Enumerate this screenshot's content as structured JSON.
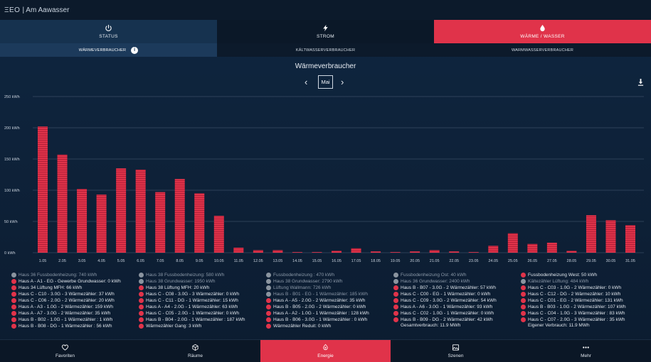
{
  "app": {
    "logo": "ΞEO",
    "home_title": "| Am Aawasser"
  },
  "main_tabs": [
    {
      "label": "STATUS",
      "icon": "power-icon"
    },
    {
      "label": "STROM",
      "icon": "lightning-icon"
    },
    {
      "label": "WÄRME / WASSER",
      "icon": "drop-icon"
    }
  ],
  "sub_tabs": [
    {
      "label": "WÄRMEVERBRAUCHER",
      "info": "i"
    },
    {
      "label": "KÄLTWASSERVERBRAUCHER"
    },
    {
      "label": "WARMWASSERVERBRAUCHER"
    }
  ],
  "chart_header": {
    "title": "Wärmeverbraucher",
    "period": "Mai"
  },
  "colors": {
    "accent": "#e0334a",
    "background": "#0e2035",
    "muted_dot": "#8a949f"
  },
  "chart_data": {
    "type": "bar",
    "title": "Wärmeverbraucher",
    "xlabel": "",
    "ylabel": "",
    "ylim": [
      0,
      250
    ],
    "yticks": [
      "0 kWh",
      "50 kWh",
      "100 kWh",
      "150 kWh",
      "200 kWh",
      "250 kWh"
    ],
    "grid": true,
    "categories": [
      "1.05",
      "2.05",
      "3.05",
      "4.05",
      "5.05",
      "6.05",
      "7.05",
      "8.05",
      "9.05",
      "10.05",
      "11.05",
      "12.05",
      "13.05",
      "14.05",
      "15.05",
      "16.05",
      "17.05",
      "18.05",
      "19.05",
      "20.05",
      "21.05",
      "22.05",
      "23.05",
      "24.05",
      "25.05",
      "26.05",
      "27.05",
      "28.05",
      "29.05",
      "30.05",
      "31.05"
    ],
    "values": [
      202,
      157,
      102,
      93,
      135,
      133,
      97,
      118,
      95,
      59,
      8,
      4,
      4,
      1,
      1,
      3,
      7,
      2,
      1,
      2,
      4,
      2,
      1,
      11,
      31,
      14,
      16,
      3,
      60,
      52,
      44
    ]
  },
  "legend": {
    "columns": [
      {
        "items": [
          {
            "label": "Haus 36 Fussbodenheizung: 740 kWh",
            "muted": true
          },
          {
            "label": "Haus A - A1 - EG - Gewerbe Grundwasser: 0 kWh",
            "muted": false
          },
          {
            "label": "Haus 34 Lüftung MFH: 66 kWh",
            "muted": false
          },
          {
            "label": "Haus C - C10 - 3.0G - 3 Wärmezähler: 37 kWh",
            "muted": false
          },
          {
            "label": "Haus C - C06 - 2.0G - 2 Wärmezähler: 20 kWh",
            "muted": false
          },
          {
            "label": "Haus A - A3 - 1.0G - 2 Wärmezähler: 159 kWh",
            "muted": false
          },
          {
            "label": "Haus A - A7 - 3.0G - 2 Wärmezähler: 35 kWh",
            "muted": false
          },
          {
            "label": "Haus B - B02 - 1.0G - 1 Wärmezähler : 1 kWh",
            "muted": false
          },
          {
            "label": "Haus B - B08 - DG - 1 Wärmezähler : 56 kWh",
            "muted": false
          }
        ]
      },
      {
        "items": [
          {
            "label": "Haus 38 Fussbodenheizung: 580 kWh",
            "muted": true
          },
          {
            "label": "Haus 38 Grundwasser: 1950 kWh",
            "muted": true
          },
          {
            "label": "Haus 38 Lüftung MFH: 20 kWh",
            "muted": false
          },
          {
            "label": "Haus C - C08 - 3.0G - 3 Wärmezähler: 0 kWh",
            "muted": false
          },
          {
            "label": "Haus C - C11 - DG - 1 Wärmezähler: 15 kWh",
            "muted": false
          },
          {
            "label": "Haus A - A4 - 2.0G - 1 Wärmezähler: 63 kWh",
            "muted": false
          },
          {
            "label": "Haus C - C05 - 2.0G - 1 Wärmezähler: 0 kWh",
            "muted": false
          },
          {
            "label": "Haus B - B04 - 2.0G - 1 Wärmezähler : 187 kWh",
            "muted": false
          },
          {
            "label": "Wärmezähler Gang: 3 kWh",
            "muted": false
          }
        ]
      },
      {
        "items": [
          {
            "label": "Fussbodenheizung : 470 kWh",
            "muted": true
          },
          {
            "label": "Haus 38 Grundwasser: 2790 kWh",
            "muted": true
          },
          {
            "label": "Lüftung Wallmann: 726 kWh",
            "muted": true
          },
          {
            "label": "Haus B - B01 - EG - 1 Wärmezähler: 185 kWh",
            "muted": true
          },
          {
            "label": "Haus A - A5 - 2.0G - 2 Wärmezähler: 35 kWh",
            "muted": false
          },
          {
            "label": "Haus B - B05 - 2.0G - 2 Wärmezähler: 0 kWh",
            "muted": false
          },
          {
            "label": "Haus A - A2 - 1.0G - 1 Wärmezähler : 128 kWh",
            "muted": false
          },
          {
            "label": "Haus B - B06 - 3.0G - 1 Wärmezähler : 0 kWh",
            "muted": false
          },
          {
            "label": "Wärmezähler Reduit: 0 kWh",
            "muted": false
          }
        ]
      },
      {
        "items": [
          {
            "label": "Fussbodenheizung Ost: 40 kWh",
            "muted": true
          },
          {
            "label": "Haus 36 Grundwasser: 2400 kWh",
            "muted": true
          },
          {
            "label": "Haus B - B07 - 3.0G - 2 Wärmezähler: 57 kWh",
            "muted": false
          },
          {
            "label": "Haus C - C00 - EG - 1 Wärmezähler: 0 kWh",
            "muted": false
          },
          {
            "label": "Haus C - C09 - 3.0G - 2 Wärmezähler: 54 kWh",
            "muted": false
          },
          {
            "label": "Haus A - A6 - 3.0G - 1 Wärmezähler: 93 kWh",
            "muted": false
          },
          {
            "label": "Haus C - C02 - 1.0G - 1 Wärmezähler: 0 kWh",
            "muted": false
          },
          {
            "label": "Haus B - B09 - DG - 2 Wärmezähler: 42 kWh",
            "muted": false
          }
        ],
        "total": "Gesamtverbrauch: 11.9 MWh"
      },
      {
        "items": [
          {
            "label": "Fussbodenheizung West: 50 kWh",
            "muted": false
          },
          {
            "label": "Kältezähler Lüftung: 484 kWh",
            "muted": true
          },
          {
            "label": "Haus C - C03 - 1.0G - 2 Wärmezähler: 0 kWh",
            "muted": false
          },
          {
            "label": "Haus C - C12 - DG - 2 Wärmezähler: 10 kWh",
            "muted": false
          },
          {
            "label": "Haus C - C01 - EG - 2 Wärmezähler: 131 kWh",
            "muted": false
          },
          {
            "label": "Haus B - B03 - 1.0G - 2 Wärmezähler: 107 kWh",
            "muted": false
          },
          {
            "label": "Haus C - C04 - 1.0G - 3 Wärmezähler : 83 kWh",
            "muted": false
          },
          {
            "label": "Haus C - C07 - 2.0G - 3 Wärmezähler : 35 kWh",
            "muted": false
          }
        ],
        "total": "Eigener Verbrauch: 11.9 MWh"
      }
    ]
  },
  "bottom_nav": [
    {
      "label": "Favoriten",
      "icon": "heart-icon"
    },
    {
      "label": "Räume",
      "icon": "cube-icon"
    },
    {
      "label": "Energie",
      "icon": "energy-icon"
    },
    {
      "label": "Szenen",
      "icon": "image-icon"
    },
    {
      "label": "Mehr",
      "icon": "more-icon"
    }
  ]
}
